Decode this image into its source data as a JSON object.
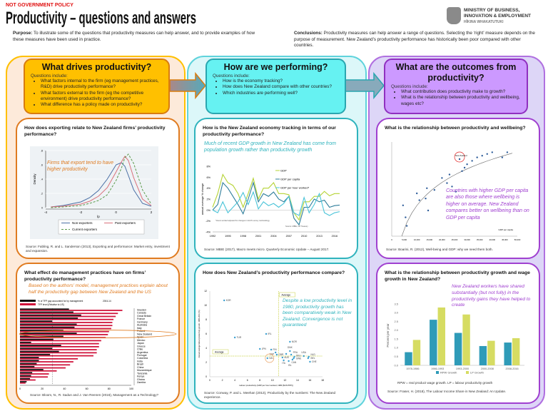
{
  "header": {
    "disclaimer": "NOT GOVERNMENT POLICY",
    "title": "Productivity – questions and answers",
    "logo": {
      "line1": "MINISTRY OF BUSINESS,",
      "line2": "INNOVATION & EMPLOYMENT",
      "line3": "HĪKINA WHAKATUTUKI"
    },
    "purpose_label": "Purpose:",
    "purpose": "To illustrate some of the questions that productivity measures can help answer, and to provide examples of how these measures have been used in practice.",
    "conclusions_label": "Conclusions:",
    "conclusions": "Productivity measures can help answer a range of questions. Selecting the ‘right’ measure depends on the purpose of measurement. New Zealand’s productivity performance has historically been poor compared with other countries."
  },
  "colors": {
    "orange": "#ffc000",
    "cyan": "#66f2f2",
    "purple": "#cc99ff"
  },
  "columns": [
    {
      "title": "What drives productivity?",
      "intro": "Questions include:",
      "questions": [
        "What factors internal to the firm (eg management practices, R&D) drive productivity performance?",
        "What factors external to the firm (eg the competitive environment) drive productivity performance?",
        "What difference has a policy made on productivity?"
      ]
    },
    {
      "title": "How are we performing?",
      "intro": "Questions include:",
      "questions": [
        "How is the economy tracking?",
        "How does New Zealand compare with other countries?",
        "Which industries are performing well?"
      ]
    },
    {
      "title": "What are the outcomes from productivity?",
      "intro": "Questions include:",
      "questions": [
        "What contribution does productivity make to growth?",
        "What is the relationship between productivity and wellbeing, wages etc?"
      ]
    }
  ],
  "cards": {
    "exporting": {
      "title": "How does exporting relate to New Zealand firms’ productivity performance?",
      "note": "Firms that export tend to have higher productivity",
      "source": "Source: Fabling, R. and L. Sanderson (2013), Exporting and performance: Market entry, investment and expansion."
    },
    "economy": {
      "title": "How is the New Zealand economy tracking in terms of our productivity performance?",
      "note": "Much of recent GDP growth in New Zealand has come from population growth rather than productivity growth",
      "source": "Source: MBIE (2017), Macro meets micro. Quarterly Economic Update – August 2017."
    },
    "wellbeing": {
      "title": "What is the relationship between productivity and wellbeing?",
      "note": "Countries with higher GDP per capita are also those where wellbeing is higher on average. New Zealand compares better on wellbeing than on GDP per capita",
      "source": "Source: Boarini, R. (2012), Well-being and GDP: why we need them both."
    },
    "management": {
      "title": "What effect do management practices have on firms’ productivity performance?",
      "note": "Based on the authors’ model, management practices explain about half the productivity gap between New Zealand and the US",
      "source": "Source: Bloom, N., R. Sadun and J. Van Reenen (2016), Management as a Technology?"
    },
    "compare": {
      "title": "How does New Zealand’s productivity performance compare?",
      "note": "Despite a low productivity level in 1980, productivity growth has been comparatively weak in New Zealand. Convergence is not guaranteed",
      "source": "Source: Conway, P. and L. Meehan (2013), Productivity by the numbers: The New Zealand experience."
    },
    "wages": {
      "title": "What is the relationship between productivity growth and wage growth in New Zealand?",
      "note": "New Zealand workers have shared substantially (but not fully) in the productivity gains they have helped to create",
      "footnote": "RPW = real product wage growth. LP = labour productivity growth",
      "source": "Source: Fraser, H. (2018), The Labour Income Share in New Zealand: An Update."
    }
  },
  "chart_data": [
    {
      "id": "exporting",
      "type": "line",
      "xlabel": "lp",
      "ylabel": "Density",
      "xlim": [
        -4,
        2
      ],
      "ylim": [
        0,
        0.8
      ],
      "xticks": [
        "-4",
        "-2",
        "0",
        "2"
      ],
      "yticks": [
        "0",
        ".2",
        ".4",
        ".6",
        ".8"
      ],
      "x": [
        -3.7,
        -3,
        -2,
        -1.5,
        -1,
        -0.5,
        0,
        0.3,
        0.5,
        0.7,
        1,
        1.5,
        2
      ],
      "series": [
        {
          "name": "Non-exporters",
          "color": "#4a6fa5",
          "dash": "",
          "values": [
            0.01,
            0.03,
            0.08,
            0.14,
            0.24,
            0.4,
            0.6,
            0.63,
            0.58,
            0.45,
            0.25,
            0.06,
            0.02
          ]
        },
        {
          "name": "Past exporters",
          "color": "#d9707a",
          "dash": "",
          "values": [
            0.01,
            0.02,
            0.05,
            0.09,
            0.16,
            0.28,
            0.5,
            0.64,
            0.72,
            0.66,
            0.42,
            0.12,
            0.03
          ]
        },
        {
          "name": "Current exporters",
          "color": "#5a9a4a",
          "dash": "3,2",
          "values": [
            0,
            0.01,
            0.03,
            0.06,
            0.1,
            0.18,
            0.38,
            0.55,
            0.7,
            0.75,
            0.62,
            0.25,
            0.05
          ]
        }
      ]
    },
    {
      "id": "economy",
      "type": "line",
      "ylabel": "annual average % change",
      "xlim": [
        1992,
        2017
      ],
      "ylim": [
        -4,
        8
      ],
      "xticks": [
        "1992",
        "1995",
        "1998",
        "2001",
        "2004",
        "2007",
        "2010",
        "2013",
        "2016"
      ],
      "yticks": [
        "-4%",
        "-2%",
        "0%",
        "2%",
        "4%",
        "6%",
        "8%"
      ],
      "footnote": "*Hours worked adjusted for changes in HLFS survey methodology",
      "chart_source": "Source: MBIE, NZ Treasury",
      "x": [
        1992,
        1993,
        1994,
        1995,
        1996,
        1997,
        1998,
        1999,
        2000,
        2001,
        2002,
        2003,
        2004,
        2005,
        2006,
        2007,
        2008,
        2009,
        2010,
        2011,
        2012,
        2013,
        2014,
        2015,
        2016,
        2017
      ],
      "series": [
        {
          "name": "GDP",
          "color": "#b5d334",
          "values": [
            0.5,
            3,
            6.5,
            5,
            4.5,
            3,
            0.5,
            3,
            5.8,
            2,
            4,
            4,
            5,
            3,
            3,
            2.8,
            -0.5,
            -1.8,
            1.5,
            1.5,
            2.5,
            2.5,
            3.4,
            2.6,
            3,
            3
          ]
        },
        {
          "name": "GDP per capita",
          "color": "#2e7d9a",
          "values": [
            0,
            1,
            5,
            4,
            2.5,
            1,
            -0.7,
            2,
            5,
            1.5,
            3,
            2.5,
            3.3,
            2,
            1.5,
            2.5,
            -1.5,
            -2.7,
            0.5,
            0.5,
            2,
            1.5,
            1.8,
            0.5,
            0.8,
            0.9
          ]
        },
        {
          "name": "GDP per hour worked*",
          "color": "#49c3d8",
          "values": [
            0,
            -0.5,
            1.5,
            -0.5,
            0.5,
            1.5,
            3.2,
            1,
            3.3,
            0.2,
            1.5,
            0.8,
            1.2,
            0.5,
            1.2,
            2.5,
            -0.5,
            -1,
            2.3,
            -0.5,
            1,
            3,
            -0.5,
            -1,
            -0.5,
            -0.3
          ]
        }
      ]
    },
    {
      "id": "wellbeing",
      "type": "scatter",
      "xlabel": "GDP per capita",
      "xlim": [
        0,
        50000
      ],
      "ylim": [
        3,
        8.5
      ],
      "xticks": [
        "0",
        "5,000",
        "10,000",
        "15,000",
        "20,000",
        "25,000",
        "30,000",
        "35,000",
        "40,000",
        "45,000",
        "50,000"
      ],
      "highlight": "New Zealand",
      "points": [
        {
          "x": 27000,
          "y": 7.5,
          "label": "New Zealand"
        },
        {
          "x": 10000,
          "y": 5.5
        },
        {
          "x": 11000,
          "y": 5.1
        },
        {
          "x": 13500,
          "y": 5.2
        },
        {
          "x": 14000,
          "y": 5.8
        },
        {
          "x": 17000,
          "y": 5.7
        },
        {
          "x": 20000,
          "y": 6.4
        },
        {
          "x": 22000,
          "y": 6.1
        },
        {
          "x": 23000,
          "y": 6.6
        },
        {
          "x": 24000,
          "y": 5.9
        },
        {
          "x": 25500,
          "y": 5.6
        },
        {
          "x": 28000,
          "y": 6.8
        },
        {
          "x": 29000,
          "y": 7.0
        },
        {
          "x": 30000,
          "y": 7.2
        },
        {
          "x": 32000,
          "y": 7.4
        },
        {
          "x": 34000,
          "y": 7.6
        },
        {
          "x": 36000,
          "y": 7.7
        },
        {
          "x": 38000,
          "y": 7.8
        },
        {
          "x": 40000,
          "y": 7.9
        },
        {
          "x": 44000,
          "y": 7.6
        },
        {
          "x": 46000,
          "y": 7.9
        },
        {
          "x": 14500,
          "y": 4.5
        },
        {
          "x": 4500,
          "y": 4.8
        },
        {
          "x": 5500,
          "y": 4.1
        },
        {
          "x": 6000,
          "y": 3.6
        }
      ]
    },
    {
      "id": "management",
      "type": "bar",
      "orientation": "horizontal",
      "xlim": [
        0,
        100
      ],
      "xticks": [
        "0",
        "20",
        "40",
        "60",
        "80",
        "100"
      ],
      "period": "2004-14",
      "highlight": "New Zealand",
      "categories": [
        "Sweden",
        "Canada",
        "Great Britain",
        "France",
        "Germany",
        "Australia",
        "Italy",
        "Poland",
        "New Zealand",
        "Spain",
        "Mexico",
        "Japan",
        "Greece",
        "Chile",
        "Argentina",
        "Portugal",
        "Colombia",
        "India",
        "Brazil",
        "China",
        "Mozambique",
        "Tanzania",
        "Kenya",
        "Ghana",
        "Zambia"
      ],
      "series": [
        {
          "name": "% of TFP gap accounted for by management",
          "color": "#111111",
          "values": [
            44,
            48,
            55,
            52,
            29,
            51,
            49,
            39,
            51,
            39,
            30,
            10,
            37,
            29,
            35,
            27,
            17,
            17,
            15,
            13,
            21,
            11,
            10,
            9,
            6
          ]
        },
        {
          "name": "TFP level (Relative to US)",
          "color": "#d0143c",
          "values": [
            92,
            88,
            86,
            84,
            83,
            83,
            82,
            80,
            79,
            77,
            73,
            71,
            71,
            69,
            69,
            66,
            52,
            48,
            45,
            41,
            33,
            26,
            25,
            14,
            5
          ]
        }
      ]
    },
    {
      "id": "compare",
      "type": "scatter",
      "xlabel": "Labour productivity (GDP per hour worked, 1980 ($US PPP))",
      "ylabel": "Annual average labour productivity growth, 1980-2011 (%)",
      "xlim": [
        0,
        18
      ],
      "ylim": [
        0,
        12
      ],
      "xticks": [
        "0",
        "2",
        "4",
        "6",
        "8",
        "10",
        "12",
        "14",
        "16",
        "18"
      ],
      "yticks": [
        "0",
        "2",
        "4",
        "6",
        "8",
        "10",
        "12"
      ],
      "average_label": "Average",
      "average_x": 11,
      "average_y": 2.9,
      "highlight": "NZL",
      "points": [
        {
          "x": 2.3,
          "y": 10.7,
          "label": "KOR"
        },
        {
          "x": 4,
          "y": 5.5,
          "label": "TUR"
        },
        {
          "x": 9,
          "y": 6,
          "label": "IRL"
        },
        {
          "x": 8,
          "y": 3.9,
          "label": "JPN"
        },
        {
          "x": 9.8,
          "y": 3.8,
          "label": "FIN"
        },
        {
          "x": 10.5,
          "y": 3.4,
          "label": "ESP"
        },
        {
          "x": 10.7,
          "y": 3.1,
          "label": "GBR"
        },
        {
          "x": 9.2,
          "y": 2.6,
          "label": "NZL"
        },
        {
          "x": 12.8,
          "y": 4.9,
          "label": "NOR"
        },
        {
          "x": 12.8,
          "y": 3.6,
          "label": "DNK"
        },
        {
          "x": 12.2,
          "y": 3.2,
          "label": ""
        },
        {
          "x": 13,
          "y": 3.1,
          "label": "FRA"
        },
        {
          "x": 13.5,
          "y": 2.8,
          "label": "DEU"
        },
        {
          "x": 15,
          "y": 2.9,
          "label": "USA"
        },
        {
          "x": 15.8,
          "y": 2.8,
          "label": "NLD"
        },
        {
          "x": 15.7,
          "y": 2.6,
          "label": "BEL"
        },
        {
          "x": 16,
          "y": 2.1,
          "label": "CHE"
        },
        {
          "x": 13.2,
          "y": 2.4,
          "label": "CAN"
        },
        {
          "x": 13.4,
          "y": 2.6,
          "label": "SWE"
        },
        {
          "x": 12.6,
          "y": 2.2,
          "label": "ISL"
        },
        {
          "x": 11.6,
          "y": 2.7,
          "label": "AUS"
        },
        {
          "x": 11.8,
          "y": 2.3,
          "label": "ITA"
        }
      ]
    },
    {
      "id": "wages",
      "type": "bar",
      "ylabel": "Percent per year",
      "ylim": [
        0,
        3.5
      ],
      "yticks": [
        "0.0",
        "0.5",
        "1.0",
        "1.5",
        "2.0",
        "2.5",
        "3.0",
        "3.5"
      ],
      "categories": [
        "1978-1986",
        "1986-1993",
        "1993-2000",
        "2000-2008",
        "2008-2016"
      ],
      "series": [
        {
          "name": "RPW Growth",
          "color": "#2f9bb8",
          "values": [
            0.75,
            2.6,
            1.85,
            1.1,
            1.3
          ]
        },
        {
          "name": "LP Growth",
          "color": "#d6dc62",
          "values": [
            1.45,
            3.3,
            2.9,
            1.4,
            1.55
          ]
        }
      ]
    }
  ]
}
